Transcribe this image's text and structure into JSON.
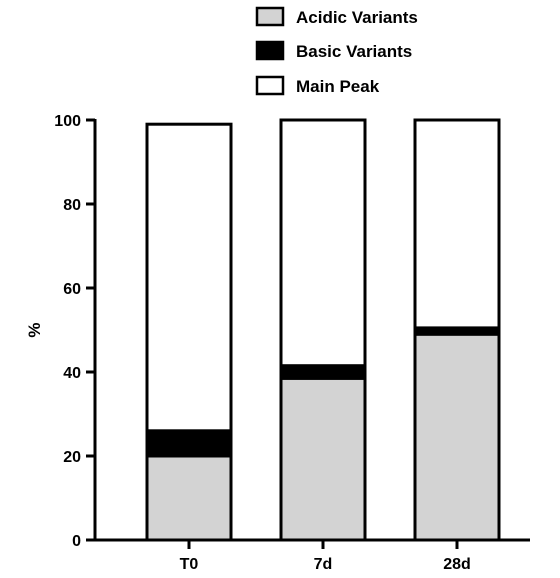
{
  "chart_data": {
    "type": "bar",
    "stacked": true,
    "categories": [
      "T0",
      "7d",
      "28d"
    ],
    "series": [
      {
        "name": "Acidic Variants",
        "values": [
          20,
          38.5,
          49
        ],
        "color": "#d3d3d3"
      },
      {
        "name": "Basic Variants",
        "values": [
          6,
          3,
          1.5
        ],
        "color": "#000000"
      },
      {
        "name": "Main Peak",
        "values": [
          73,
          58.5,
          49.5
        ],
        "color": "#ffffff"
      }
    ],
    "ylabel": "%",
    "xlabel": "",
    "ylim": [
      0,
      100
    ],
    "yticks": [
      0,
      20,
      40,
      60,
      80,
      100
    ],
    "grid": false,
    "legend_position": "top-right"
  }
}
